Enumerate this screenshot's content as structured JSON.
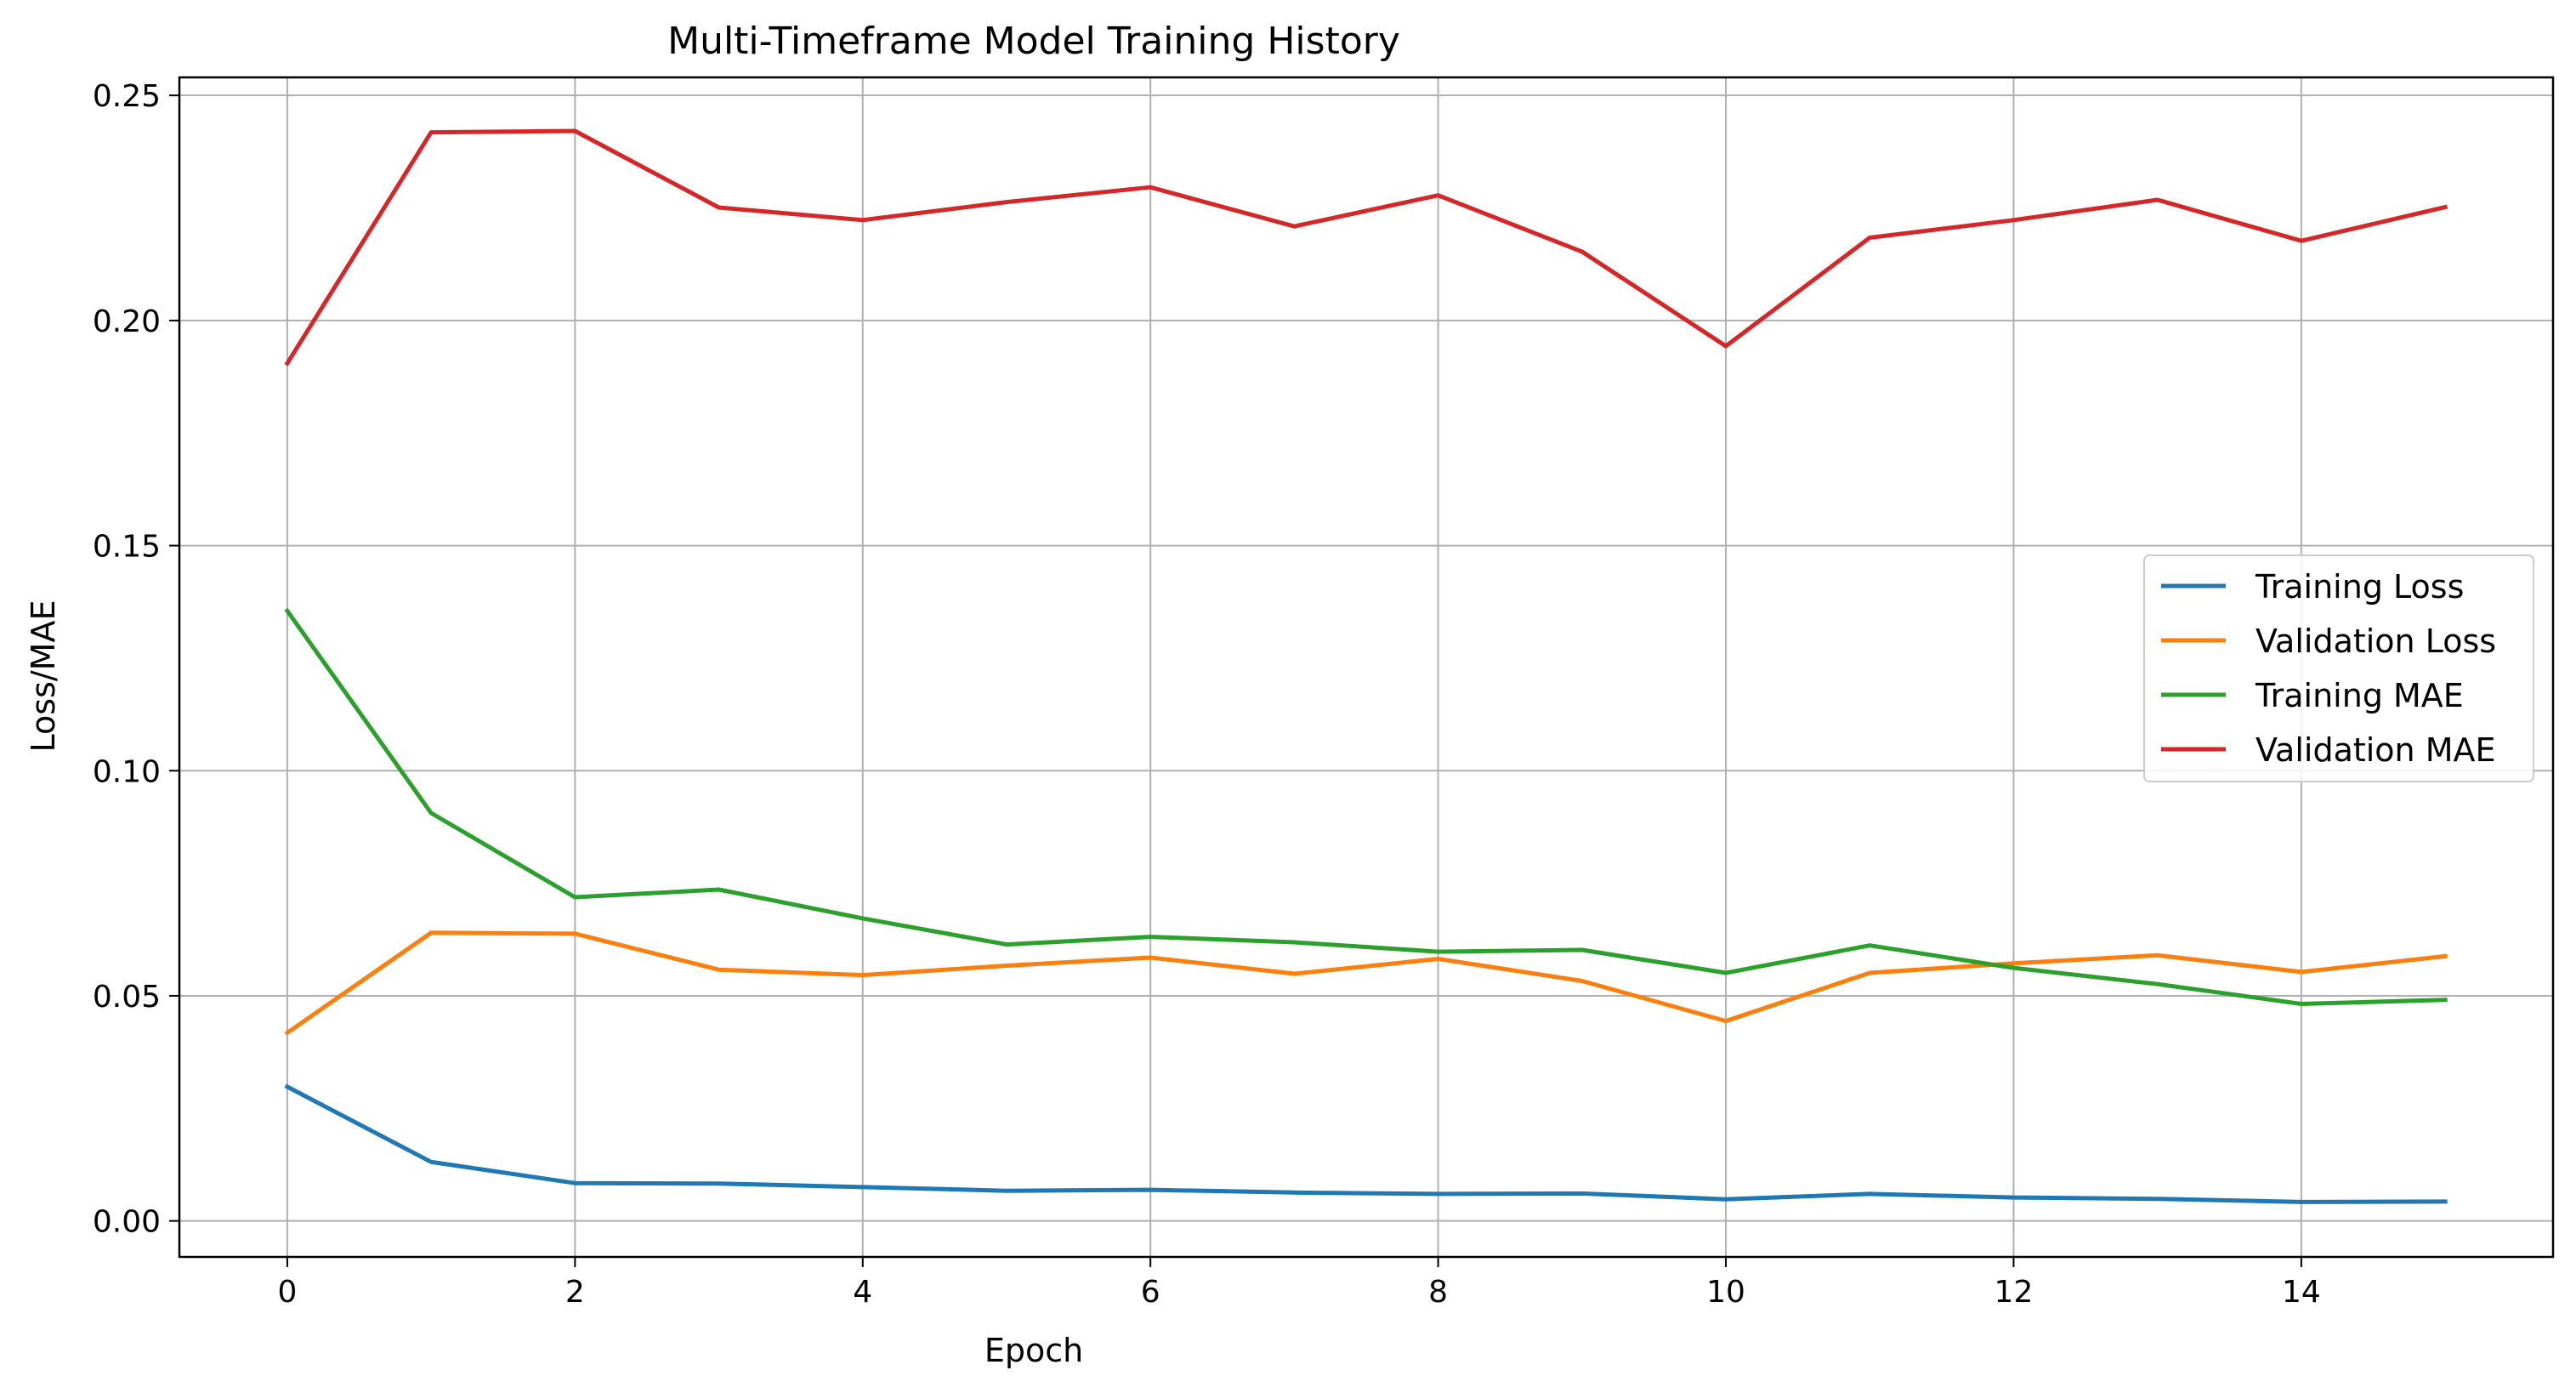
{
  "chart_data": {
    "type": "line",
    "title": "Multi-Timeframe Model Training History",
    "xlabel": "Epoch",
    "ylabel": "Loss/MAE",
    "xlim": [
      -0.75,
      15.75
    ],
    "ylim": [
      -0.008,
      0.254
    ],
    "x_ticks": [
      0,
      2,
      4,
      6,
      8,
      10,
      12,
      14
    ],
    "x_tick_labels": [
      "0",
      "2",
      "4",
      "6",
      "8",
      "10",
      "12",
      "14"
    ],
    "y_ticks": [
      0.0,
      0.05,
      0.1,
      0.15,
      0.2,
      0.25
    ],
    "y_tick_labels": [
      "0.00",
      "0.05",
      "0.10",
      "0.15",
      "0.20",
      "0.25"
    ],
    "grid": true,
    "legend_position": "center-right",
    "x": [
      0,
      1,
      2,
      3,
      4,
      5,
      6,
      7,
      8,
      9,
      10,
      11,
      12,
      13,
      14,
      15
    ],
    "series": [
      {
        "name": "Training Loss",
        "color": "#1f77b4",
        "values": [
          0.0298,
          0.0131,
          0.0084,
          0.0083,
          0.0075,
          0.0067,
          0.0069,
          0.0063,
          0.006,
          0.0061,
          0.0048,
          0.006,
          0.0052,
          0.0049,
          0.0042,
          0.0043
        ]
      },
      {
        "name": "Validation Loss",
        "color": "#ff7f0e",
        "values": [
          0.0418,
          0.064,
          0.0638,
          0.0558,
          0.0546,
          0.0567,
          0.0585,
          0.0549,
          0.0582,
          0.0533,
          0.0444,
          0.0551,
          0.0572,
          0.059,
          0.0553,
          0.0588
        ]
      },
      {
        "name": "Training MAE",
        "color": "#2ca02c",
        "values": [
          0.1355,
          0.0906,
          0.0719,
          0.0736,
          0.0672,
          0.0614,
          0.0631,
          0.0619,
          0.0598,
          0.0602,
          0.0551,
          0.0612,
          0.0562,
          0.0526,
          0.0482,
          0.0491
        ]
      },
      {
        "name": "Validation MAE",
        "color": "#d62728",
        "values": [
          0.1905,
          0.2418,
          0.2421,
          0.2251,
          0.2223,
          0.2263,
          0.2296,
          0.2209,
          0.2278,
          0.2153,
          0.1943,
          0.2184,
          0.2223,
          0.2268,
          0.2177,
          0.2252
        ]
      }
    ]
  }
}
